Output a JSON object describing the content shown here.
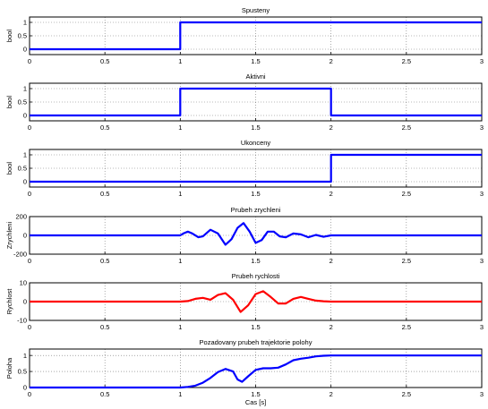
{
  "chart_data": [
    {
      "type": "line",
      "title": "Spusteny",
      "xlabel": "",
      "ylabel": "bool",
      "xlim": [
        0,
        3
      ],
      "ylim": [
        -0.2,
        1.2
      ],
      "x_ticks": [
        "0",
        "0.5",
        "1",
        "1.5",
        "2",
        "2.5",
        "3"
      ],
      "y_ticks": [
        "0",
        "0.5",
        "1"
      ],
      "grid": true,
      "series": [
        {
          "color": "#0000ff",
          "points": [
            [
              0,
              0
            ],
            [
              1,
              0
            ],
            [
              1,
              1
            ],
            [
              3,
              1
            ]
          ]
        }
      ]
    },
    {
      "type": "line",
      "title": "Aktivni",
      "xlabel": "",
      "ylabel": "bool",
      "xlim": [
        0,
        3
      ],
      "ylim": [
        -0.2,
        1.2
      ],
      "x_ticks": [
        "0",
        "0.5",
        "1",
        "1.5",
        "2",
        "2.5",
        "3"
      ],
      "y_ticks": [
        "0",
        "0.5",
        "1"
      ],
      "grid": true,
      "series": [
        {
          "color": "#0000ff",
          "points": [
            [
              0,
              0
            ],
            [
              1,
              0
            ],
            [
              1,
              1
            ],
            [
              2,
              1
            ],
            [
              2,
              0
            ],
            [
              3,
              0
            ]
          ]
        }
      ]
    },
    {
      "type": "line",
      "title": "Ukonceny",
      "xlabel": "",
      "ylabel": "bool",
      "xlim": [
        0,
        3
      ],
      "ylim": [
        -0.2,
        1.2
      ],
      "x_ticks": [
        "0",
        "0.5",
        "1",
        "1.5",
        "2",
        "2.5",
        "3"
      ],
      "y_ticks": [
        "0",
        "0.5",
        "1"
      ],
      "grid": true,
      "series": [
        {
          "color": "#0000ff",
          "points": [
            [
              0,
              0
            ],
            [
              2,
              0
            ],
            [
              2,
              1
            ],
            [
              3,
              1
            ]
          ]
        }
      ]
    },
    {
      "type": "line",
      "title": "Prubeh zrychleni",
      "xlabel": "",
      "ylabel": "Zrychleni",
      "xlim": [
        0,
        3
      ],
      "ylim": [
        -200,
        200
      ],
      "x_ticks": [
        "0",
        "0.5",
        "1",
        "1.5",
        "2",
        "2.5",
        "3"
      ],
      "y_ticks": [
        "-200",
        "0",
        "200"
      ],
      "grid": true,
      "series": [
        {
          "color": "#0000ff",
          "points": [
            [
              0,
              0
            ],
            [
              1,
              0
            ],
            [
              1.02,
              20
            ],
            [
              1.05,
              40
            ],
            [
              1.08,
              20
            ],
            [
              1.12,
              -20
            ],
            [
              1.15,
              -10
            ],
            [
              1.2,
              60
            ],
            [
              1.25,
              20
            ],
            [
              1.3,
              -100
            ],
            [
              1.34,
              -40
            ],
            [
              1.38,
              80
            ],
            [
              1.42,
              130
            ],
            [
              1.46,
              40
            ],
            [
              1.5,
              -80
            ],
            [
              1.54,
              -50
            ],
            [
              1.58,
              40
            ],
            [
              1.62,
              40
            ],
            [
              1.66,
              -10
            ],
            [
              1.7,
              -20
            ],
            [
              1.75,
              20
            ],
            [
              1.8,
              10
            ],
            [
              1.85,
              -20
            ],
            [
              1.9,
              5
            ],
            [
              1.95,
              -15
            ],
            [
              2,
              0
            ],
            [
              3,
              0
            ]
          ]
        }
      ]
    },
    {
      "type": "line",
      "title": "Prubeh rychlosti",
      "xlabel": "",
      "ylabel": "Rychlost",
      "xlim": [
        0,
        3
      ],
      "ylim": [
        -10,
        10
      ],
      "x_ticks": [
        "0",
        "0.5",
        "1",
        "1.5",
        "2",
        "2.5",
        "3"
      ],
      "y_ticks": [
        "-10",
        "0",
        "10"
      ],
      "grid": true,
      "series": [
        {
          "color": "#ff0000",
          "points": [
            [
              0,
              0
            ],
            [
              1,
              0
            ],
            [
              1.05,
              0.3
            ],
            [
              1.1,
              1.5
            ],
            [
              1.15,
              2
            ],
            [
              1.2,
              1
            ],
            [
              1.25,
              3.5
            ],
            [
              1.3,
              4.5
            ],
            [
              1.35,
              1
            ],
            [
              1.4,
              -5.5
            ],
            [
              1.45,
              -2
            ],
            [
              1.5,
              4
            ],
            [
              1.55,
              5.5
            ],
            [
              1.6,
              2.5
            ],
            [
              1.65,
              -1
            ],
            [
              1.7,
              -1
            ],
            [
              1.75,
              1.5
            ],
            [
              1.8,
              2.5
            ],
            [
              1.85,
              1.5
            ],
            [
              1.9,
              0.5
            ],
            [
              1.95,
              0.2
            ],
            [
              2,
              0
            ],
            [
              3,
              0
            ]
          ]
        }
      ]
    },
    {
      "type": "line",
      "title": "Pozadovany prubeh trajektorie polohy",
      "xlabel": "Cas [s]",
      "ylabel": "Poloha",
      "xlim": [
        0,
        3
      ],
      "ylim": [
        0,
        1.2
      ],
      "x_ticks": [
        "0",
        "0.5",
        "1",
        "1.5",
        "2",
        "2.5",
        "3"
      ],
      "y_ticks": [
        "0",
        "0.5",
        "1"
      ],
      "grid": true,
      "series": [
        {
          "color": "#0000ff",
          "points": [
            [
              0,
              0
            ],
            [
              1,
              0
            ],
            [
              1.05,
              0.02
            ],
            [
              1.1,
              0.06
            ],
            [
              1.15,
              0.15
            ],
            [
              1.2,
              0.3
            ],
            [
              1.25,
              0.48
            ],
            [
              1.3,
              0.58
            ],
            [
              1.35,
              0.5
            ],
            [
              1.38,
              0.25
            ],
            [
              1.41,
              0.18
            ],
            [
              1.45,
              0.35
            ],
            [
              1.5,
              0.55
            ],
            [
              1.55,
              0.6
            ],
            [
              1.6,
              0.6
            ],
            [
              1.65,
              0.62
            ],
            [
              1.7,
              0.72
            ],
            [
              1.75,
              0.85
            ],
            [
              1.8,
              0.9
            ],
            [
              1.85,
              0.93
            ],
            [
              1.9,
              0.97
            ],
            [
              1.95,
              0.99
            ],
            [
              2,
              1
            ],
            [
              3,
              1
            ]
          ]
        }
      ]
    }
  ]
}
